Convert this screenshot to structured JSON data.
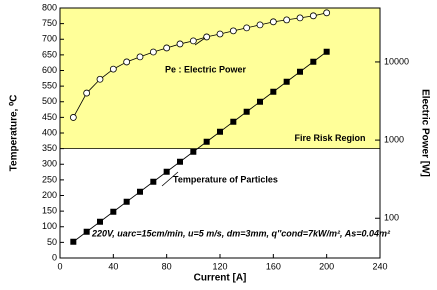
{
  "chart_data": {
    "type": "line",
    "xlabel": "Current [A]",
    "ylabel": "Temperature, ⁰C",
    "y2label": "Electric Power [W]",
    "x": [
      10,
      20,
      30,
      40,
      50,
      60,
      70,
      80,
      90,
      100,
      110,
      120,
      130,
      140,
      150,
      160,
      170,
      180,
      190,
      200
    ],
    "series": [
      {
        "name": "Temperature of Particles",
        "color": "#000000",
        "marker": "square",
        "values": [
          52,
          84,
          116,
          148,
          180,
          212,
          244,
          276,
          308,
          340,
          372,
          404,
          436,
          468,
          500,
          532,
          564,
          596,
          628,
          660
        ]
      },
      {
        "name": "Pe : Electric Power",
        "color": "#000000",
        "marker": "circle",
        "axis": "y2",
        "values": [
          1950,
          4000,
          6000,
          8100,
          10000,
          11600,
          13400,
          15100,
          17000,
          18600,
          20900,
          22800,
          25000,
          27300,
          29800,
          32600,
          34500,
          36600,
          38900,
          42500
        ]
      }
    ],
    "xlim": [
      0,
      240
    ],
    "xticks": [
      0,
      40,
      80,
      120,
      160,
      200,
      240
    ],
    "ylim": [
      0,
      800
    ],
    "yticks": [
      0,
      50,
      100,
      150,
      200,
      250,
      300,
      350,
      400,
      450,
      500,
      550,
      600,
      650,
      700,
      750,
      800
    ],
    "y2lim": [
      31,
      49000
    ],
    "y2ticks": [
      100,
      1000,
      10000
    ],
    "y2log": true,
    "region": {
      "label": "Fire Risk Region",
      "from": 350,
      "color": "#ffff99"
    },
    "note": "220V, uarc=15cm/min, u=5 m/s, dm=3mm, q''cond=7kW/m², As=0.04m²"
  }
}
